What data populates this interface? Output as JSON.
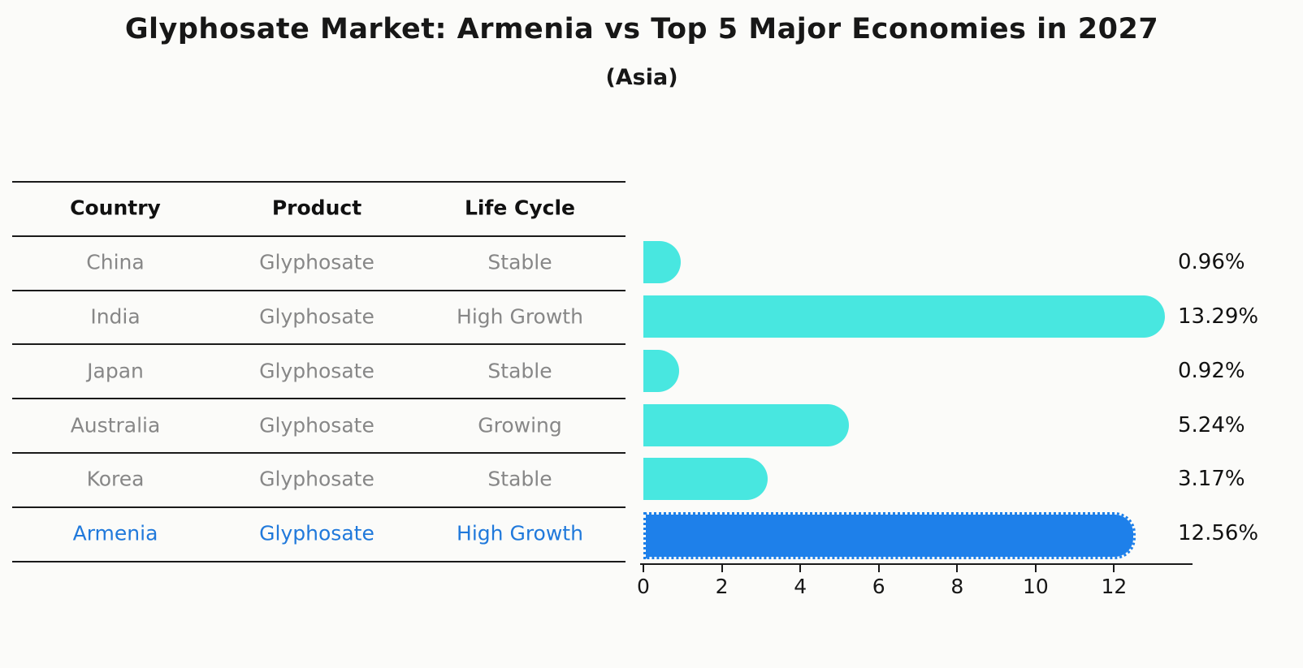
{
  "title": "Glyphosate Market: Armenia vs Top 5 Major Economies in 2027",
  "subtitle": "(Asia)",
  "colors": {
    "bar_default": "#48e7e0",
    "bar_highlight": "#1e80ea",
    "highlight_text": "#2079db",
    "row_text": "#878787",
    "header_text": "#111111",
    "line": "#1a1a1a",
    "background": "#fbfbf9"
  },
  "table": {
    "headers": [
      "Country",
      "Product",
      "Life Cycle"
    ],
    "rows": [
      {
        "country": "China",
        "product": "Glyphosate",
        "life_cycle": "Stable",
        "highlight": false
      },
      {
        "country": "India",
        "product": "Glyphosate",
        "life_cycle": "High Growth",
        "highlight": false
      },
      {
        "country": "Japan",
        "product": "Glyphosate",
        "life_cycle": "Stable",
        "highlight": false
      },
      {
        "country": "Australia",
        "product": "Glyphosate",
        "life_cycle": "Growing",
        "highlight": false
      },
      {
        "country": "Korea",
        "product": "Glyphosate",
        "life_cycle": "Stable",
        "highlight": false
      },
      {
        "country": "Armenia",
        "product": "Glyphosate",
        "life_cycle": "High Growth",
        "highlight": true
      }
    ]
  },
  "chart_data": {
    "type": "bar",
    "orientation": "horizontal",
    "title": "Glyphosate Market: Armenia vs Top 5 Major Economies in 2027",
    "subtitle": "(Asia)",
    "categories": [
      "China",
      "India",
      "Japan",
      "Australia",
      "Korea",
      "Armenia"
    ],
    "values": [
      0.96,
      13.29,
      0.92,
      5.24,
      3.17,
      12.56
    ],
    "value_labels": [
      "0.96%",
      "13.29%",
      "0.92%",
      "5.24%",
      "3.17%",
      "12.56%"
    ],
    "highlight_index": 5,
    "x_ticks": [
      0,
      2,
      4,
      6,
      8,
      10,
      12
    ],
    "xlim": [
      0,
      14
    ],
    "grid": false,
    "legend": false
  }
}
